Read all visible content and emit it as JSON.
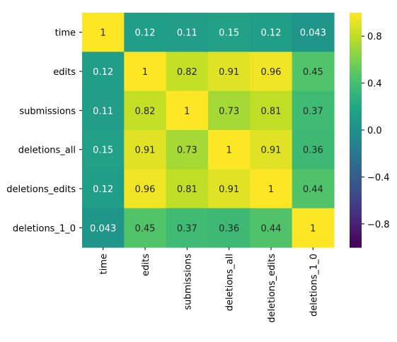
{
  "chart_data": {
    "type": "heatmap",
    "title": "",
    "xlabel": "",
    "ylabel": "",
    "x_categories": [
      "time",
      "edits",
      "submissions",
      "deletions_all",
      "deletions_edits",
      "deletions_1_0"
    ],
    "y_categories": [
      "time",
      "edits",
      "submissions",
      "deletions_all",
      "deletions_edits",
      "deletions_1_0"
    ],
    "values": [
      [
        1,
        0.12,
        0.11,
        0.15,
        0.12,
        0.043
      ],
      [
        0.12,
        1,
        0.82,
        0.91,
        0.96,
        0.45
      ],
      [
        0.11,
        0.82,
        1,
        0.73,
        0.81,
        0.37
      ],
      [
        0.15,
        0.91,
        0.73,
        1,
        0.91,
        0.36
      ],
      [
        0.12,
        0.96,
        0.81,
        0.91,
        1,
        0.44
      ],
      [
        0.043,
        0.45,
        0.37,
        0.36,
        0.44,
        1
      ]
    ],
    "value_labels": [
      [
        "1",
        "0.12",
        "0.11",
        "0.15",
        "0.12",
        "0.043"
      ],
      [
        "0.12",
        "1",
        "0.82",
        "0.91",
        "0.96",
        "0.45"
      ],
      [
        "0.11",
        "0.82",
        "1",
        "0.73",
        "0.81",
        "0.37"
      ],
      [
        "0.15",
        "0.91",
        "0.73",
        "1",
        "0.91",
        "0.36"
      ],
      [
        "0.12",
        "0.96",
        "0.81",
        "0.91",
        "1",
        "0.44"
      ],
      [
        "0.043",
        "0.45",
        "0.37",
        "0.36",
        "0.44",
        "1"
      ]
    ],
    "colorscale": "viridis",
    "vmin": -1,
    "vmax": 1,
    "colorbar_ticks": [
      0.8,
      0.4,
      0.0,
      -0.4,
      -0.8
    ],
    "colorbar_tick_labels": [
      "0.8",
      "0.4",
      "0.0",
      "−0.4",
      "−0.8"
    ],
    "grid": false,
    "colorbar_placement": "right"
  }
}
